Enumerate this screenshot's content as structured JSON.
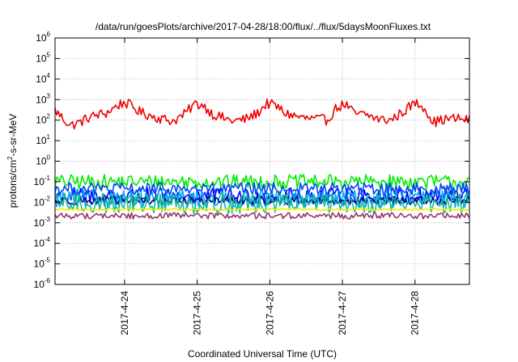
{
  "chart_data": {
    "type": "line",
    "title": "/data/run/goesPlots/archive/2017-04-28/18:00/flux/../flux/5daysMoonFluxes.txt",
    "xlabel": "Coordinated Universal Time (UTC)",
    "ylabel_parts": [
      "protons/cm",
      "2",
      "-s-sr-MeV"
    ],
    "y_scale": "log",
    "ylim": [
      1e-06,
      1000000.0
    ],
    "y_ticks": [
      {
        "base": "10",
        "exp": "-6",
        "value": 1e-06
      },
      {
        "base": "10",
        "exp": "-5",
        "value": 1e-05
      },
      {
        "base": "10",
        "exp": "-4",
        "value": 0.0001
      },
      {
        "base": "10",
        "exp": "-3",
        "value": 0.001
      },
      {
        "base": "10",
        "exp": "-2",
        "value": 0.01
      },
      {
        "base": "10",
        "exp": "-1",
        "value": 0.1
      },
      {
        "base": "10",
        "exp": "0",
        "value": 1
      },
      {
        "base": "10",
        "exp": "1",
        "value": 10
      },
      {
        "base": "10",
        "exp": "2",
        "value": 100
      },
      {
        "base": "10",
        "exp": "3",
        "value": 1000
      },
      {
        "base": "10",
        "exp": "4",
        "value": 10000
      },
      {
        "base": "10",
        "exp": "5",
        "value": 100000
      },
      {
        "base": "10",
        "exp": "6",
        "value": 1000000
      }
    ],
    "x_start": "2017-04-23 01:00",
    "x_end": "2017-04-28 18:00",
    "x_ticks": [
      {
        "label": "2017-4-24",
        "date": "2017-04-24"
      },
      {
        "label": "2017-4-25",
        "date": "2017-04-25"
      },
      {
        "label": "2017-4-26",
        "date": "2017-04-26"
      },
      {
        "label": "2017-4-27",
        "date": "2017-04-27"
      },
      {
        "label": "2017-4-28",
        "date": "2017-04-28"
      }
    ],
    "grid": true,
    "series": [
      {
        "color": "#ee0000",
        "noise": 0.25,
        "points": [
          [
            "2017-04-23 01:00",
            300
          ],
          [
            "2017-04-23 03:00",
            150
          ],
          [
            "2017-04-23 06:00",
            55
          ],
          [
            "2017-04-23 09:00",
            75
          ],
          [
            "2017-04-23 12:00",
            130
          ],
          [
            "2017-04-23 15:00",
            180
          ],
          [
            "2017-04-23 18:00",
            220
          ],
          [
            "2017-04-23 21:00",
            450
          ],
          [
            "2017-04-24 00:00",
            750
          ],
          [
            "2017-04-24 02:00",
            500
          ],
          [
            "2017-04-24 05:00",
            250
          ],
          [
            "2017-04-24 09:00",
            160
          ],
          [
            "2017-04-24 12:00",
            120
          ],
          [
            "2017-04-24 16:00",
            90
          ],
          [
            "2017-04-24 20:00",
            200
          ],
          [
            "2017-04-24 23:00",
            600
          ],
          [
            "2017-04-25 02:00",
            550
          ],
          [
            "2017-04-25 05:00",
            200
          ],
          [
            "2017-04-25 09:00",
            120
          ],
          [
            "2017-04-25 12:00",
            90
          ],
          [
            "2017-04-25 16:00",
            110
          ],
          [
            "2017-04-25 20:00",
            220
          ],
          [
            "2017-04-25 23:00",
            650
          ],
          [
            "2017-04-26 02:00",
            500
          ],
          [
            "2017-04-26 05:00",
            220
          ],
          [
            "2017-04-26 09:00",
            150
          ],
          [
            "2017-04-26 12:00",
            120
          ],
          [
            "2017-04-26 16:00",
            110
          ],
          [
            "2017-04-26 19:00",
            100
          ],
          [
            "2017-04-26 22:00",
            400
          ],
          [
            "2017-04-27 01:00",
            600
          ],
          [
            "2017-04-27 04:00",
            200
          ],
          [
            "2017-04-27 08:00",
            180
          ],
          [
            "2017-04-27 12:00",
            110
          ],
          [
            "2017-04-27 16:00",
            100
          ],
          [
            "2017-04-27 20:00",
            250
          ],
          [
            "2017-04-28 00:00",
            700
          ],
          [
            "2017-04-28 03:00",
            450
          ],
          [
            "2017-04-28 06:00",
            80
          ],
          [
            "2017-04-28 10:00",
            110
          ],
          [
            "2017-04-28 14:00",
            120
          ],
          [
            "2017-04-28 18:00",
            100
          ]
        ]
      },
      {
        "color": "#00ee00",
        "noise": 0.35,
        "points": [
          [
            "2017-04-23 01:00",
            0.1
          ],
          [
            "2017-04-28 18:00",
            0.1
          ]
        ]
      },
      {
        "color": "#0000ff",
        "noise": 0.4,
        "points": [
          [
            "2017-04-23 01:00",
            0.02
          ],
          [
            "2017-04-28 18:00",
            0.02
          ]
        ]
      },
      {
        "color": "#00aaee",
        "noise": 0.45,
        "points": [
          [
            "2017-04-23 01:00",
            0.015
          ],
          [
            "2017-04-28 18:00",
            0.015
          ]
        ]
      },
      {
        "color": "#0044ff",
        "noise": 0.3,
        "points": [
          [
            "2017-04-23 01:00",
            0.045
          ],
          [
            "2017-04-28 18:00",
            0.045
          ]
        ]
      },
      {
        "color": "#000099",
        "noise": 0.2,
        "points": [
          [
            "2017-04-23 01:00",
            0.012
          ],
          [
            "2017-04-28 18:00",
            0.012
          ]
        ]
      },
      {
        "color": "#11bb99",
        "noise": 0.5,
        "points": [
          [
            "2017-04-23 01:00",
            0.009
          ],
          [
            "2017-04-28 18:00",
            0.009
          ]
        ]
      },
      {
        "color": "#eeee00",
        "noise": 0.05,
        "points": [
          [
            "2017-04-23 01:00",
            0.0045
          ],
          [
            "2017-04-28 18:00",
            0.0045
          ]
        ]
      },
      {
        "color": "#993366",
        "noise": 0.15,
        "points": [
          [
            "2017-04-23 01:00",
            0.0022
          ],
          [
            "2017-04-28 18:00",
            0.0022
          ]
        ]
      }
    ]
  }
}
